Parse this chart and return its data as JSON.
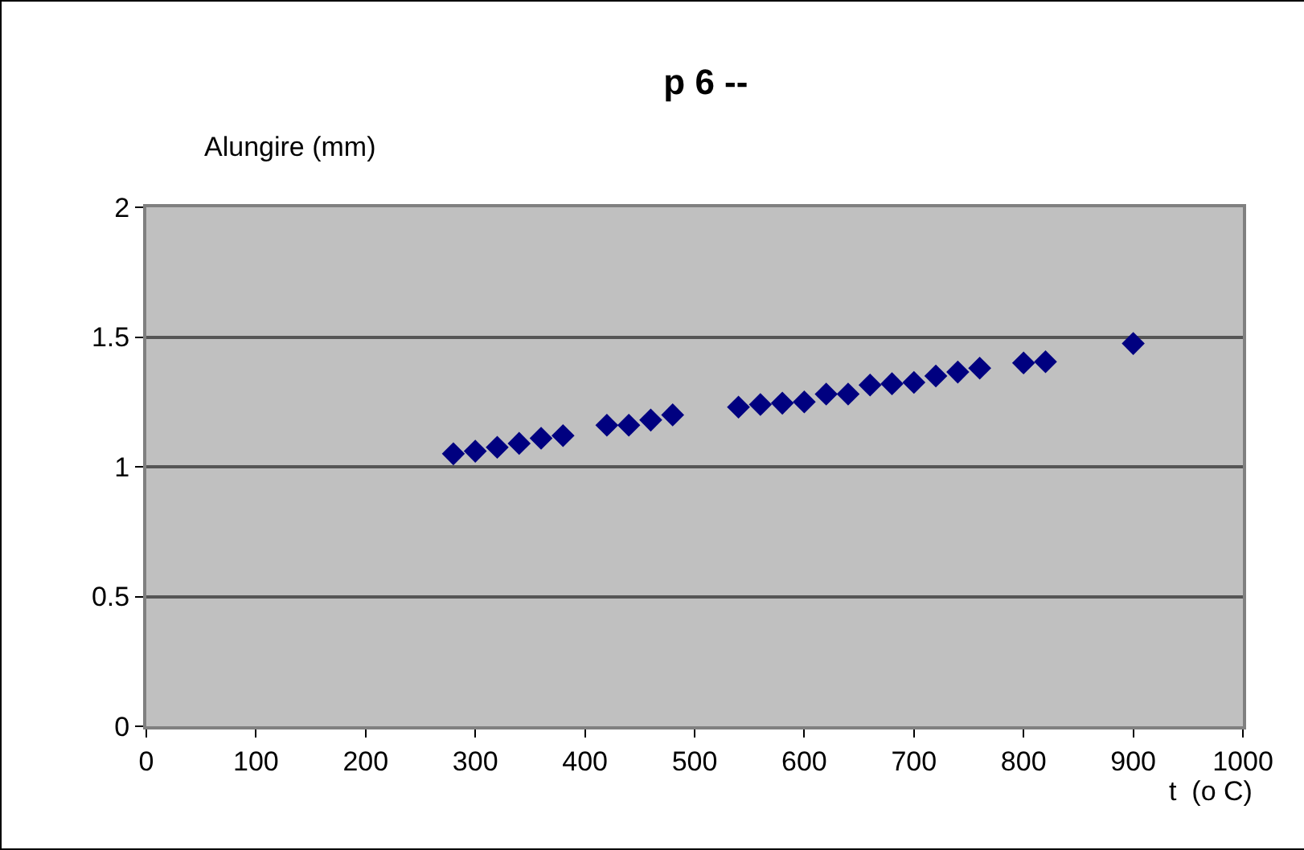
{
  "chart_data": {
    "type": "scatter",
    "title": "p 6 --",
    "xlabel": "t  (o C)",
    "ylabel": "Alungire (mm)",
    "x": [
      280,
      300,
      320,
      340,
      360,
      380,
      420,
      440,
      460,
      480,
      540,
      560,
      580,
      600,
      620,
      640,
      660,
      680,
      700,
      720,
      740,
      760,
      800,
      820,
      900
    ],
    "values": [
      1.05,
      1.06,
      1.075,
      1.09,
      1.11,
      1.12,
      1.16,
      1.16,
      1.18,
      1.2,
      1.23,
      1.24,
      1.245,
      1.25,
      1.28,
      1.28,
      1.315,
      1.32,
      1.325,
      1.35,
      1.365,
      1.38,
      1.4,
      1.405,
      1.475
    ],
    "color": "#000080",
    "marker": "diamond",
    "grid": "y",
    "xlim": [
      0,
      1000
    ],
    "xticks": [
      0,
      100,
      200,
      300,
      400,
      500,
      600,
      700,
      800,
      900,
      1000
    ],
    "ylim": [
      0,
      2
    ],
    "yticks": [
      0,
      0.5,
      1,
      1.5,
      2
    ]
  }
}
